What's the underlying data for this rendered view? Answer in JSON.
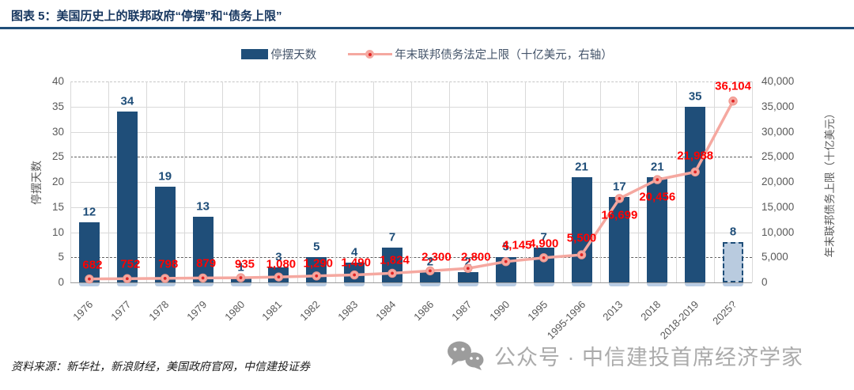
{
  "header": {
    "title": "图表 5：美国历史上的联邦政府“停摆”和“债务上限”"
  },
  "legend": {
    "bar_label": "停摆天数",
    "line_label": "年末联邦债务法定上限（十亿美元，右轴）"
  },
  "footer": {
    "source": "资料来源：新华社，新浪财经，美国政府官网，中信建投证券",
    "watermark": "公众号 · 中信建投首席经济学家"
  },
  "colors": {
    "bar": "#1F4E79",
    "bar_forecast_fill": "#B9CBDF",
    "bar_shadow": "#B8CCE4",
    "line": "#F5A8A0",
    "marker_center": "#E02424",
    "label_red": "#FF0000",
    "label_navy": "#1F4E79",
    "title_navy": "#15355E",
    "axis_text": "#595959",
    "gridline": "#D9D9D9",
    "watermark_gray": "#ABABAB"
  },
  "chart_data": {
    "type": "bar+line combo",
    "categories": [
      "1976",
      "1977",
      "1978",
      "1979",
      "1980",
      "1981",
      "1982",
      "1983",
      "1984",
      "1986",
      "1987",
      "1990",
      "1995",
      "1995-1996",
      "2013",
      "2018",
      "2018-2019",
      "2025?"
    ],
    "series": [
      {
        "name": "停摆天数",
        "type": "bar",
        "axis": "left",
        "values": [
          12,
          34,
          19,
          13,
          1,
          3,
          5,
          4,
          7,
          2,
          2,
          5,
          7,
          21,
          17,
          21,
          35,
          8
        ],
        "labels": [
          "12",
          "34",
          "19",
          "13",
          "1",
          "3",
          "5",
          "4",
          "7",
          "2",
          "2",
          "5",
          "7",
          "21",
          "17",
          "21",
          "35",
          "8"
        ],
        "forecast_index": 17
      },
      {
        "name": "年末联邦债务法定上限（十亿美元，右轴）",
        "type": "line",
        "axis": "right",
        "values": [
          682,
          752,
          798,
          879,
          935,
          1080,
          1290,
          1490,
          1824,
          2300,
          2800,
          4145,
          4900,
          5500,
          16699,
          20456,
          21988,
          36104
        ],
        "labels": [
          "682",
          "752",
          "798",
          "879",
          "935",
          "1,080",
          "1,290",
          "1,490",
          "1,824",
          "2,300",
          "2,800",
          "4,145",
          "4,900",
          "5,500",
          "16,699",
          "20,456",
          "21,988",
          "36,104"
        ]
      }
    ],
    "left_axis": {
      "label": "停摆天数",
      "min": 0,
      "max": 40,
      "step": 5,
      "ticks": [
        "0",
        "5",
        "10",
        "15",
        "20",
        "25",
        "30",
        "35",
        "40"
      ]
    },
    "right_axis": {
      "label": "年末联邦债务上限（十亿美元）",
      "min": 0,
      "max": 40000,
      "step": 5000,
      "ticks": [
        "0",
        "5,000",
        "10,000",
        "15,000",
        "20,000",
        "25,000",
        "30,000",
        "35,000",
        "40,000"
      ]
    },
    "grid": "horizontal and vertical light gray; dashed reference lines at 5 and 25 (left-axis units)",
    "legend_position": "top center"
  }
}
